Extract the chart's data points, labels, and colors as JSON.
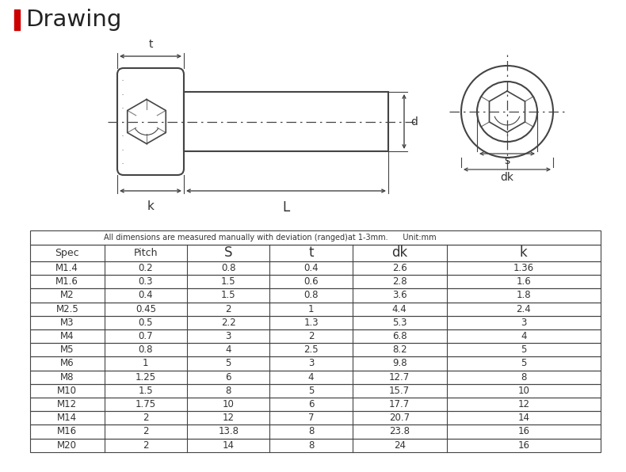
{
  "title": "Drawing",
  "background_color": "#FFFFFF",
  "note": "All dimensions are measured manually with deviation (ranged)at 1-3mm.      Unit:mm",
  "headers": [
    "Spec",
    "Pitch",
    "S",
    "t",
    "dk",
    "k"
  ],
  "rows": [
    [
      "M1.4",
      "0.2",
      "0.8",
      "0.4",
      "2.6",
      "1.36"
    ],
    [
      "M1.6",
      "0.3",
      "1.5",
      "0.6",
      "2.8",
      "1.6"
    ],
    [
      "M2",
      "0.4",
      "1.5",
      "0.8",
      "3.6",
      "1.8"
    ],
    [
      "M2.5",
      "0.45",
      "2",
      "1",
      "4.4",
      "2.4"
    ],
    [
      "M3",
      "0.5",
      "2.2",
      "1.3",
      "5.3",
      "3"
    ],
    [
      "M4",
      "0.7",
      "3",
      "2",
      "6.8",
      "4"
    ],
    [
      "M5",
      "0.8",
      "4",
      "2.5",
      "8.2",
      "5"
    ],
    [
      "M6",
      "1",
      "5",
      "3",
      "9.8",
      "5"
    ],
    [
      "M8",
      "1.25",
      "6",
      "4",
      "12.7",
      "8"
    ],
    [
      "M10",
      "1.5",
      "8",
      "5",
      "15.7",
      "10"
    ],
    [
      "M12",
      "1.75",
      "10",
      "6",
      "17.7",
      "12"
    ],
    [
      "M14",
      "2",
      "12",
      "7",
      "20.7",
      "14"
    ],
    [
      "M16",
      "2",
      "13.8",
      "8",
      "23.8",
      "16"
    ],
    [
      "M20",
      "2",
      "14",
      "8",
      "24",
      "16"
    ]
  ],
  "line_color": "#444444",
  "text_color": "#333333"
}
